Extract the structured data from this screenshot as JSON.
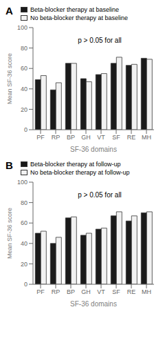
{
  "chart_data": [
    {
      "type": "bar",
      "title": "A",
      "xlabel": "SF-36 domains",
      "ylabel": "Mean SF-36 score",
      "annotation": "p > 0.05 for all",
      "categories": [
        "PF",
        "RP",
        "BP",
        "GH",
        "VT",
        "SF",
        "RE",
        "MH"
      ],
      "series": [
        {
          "name": "Beta-blocker therapy at baseline",
          "color": "#1a1a1a",
          "values": [
            49,
            39,
            65,
            50,
            54,
            65,
            63,
            70
          ]
        },
        {
          "name": "No beta-blocker therapy at baseline",
          "color": "#f2f2f2",
          "values": [
            53,
            46,
            65,
            47,
            55,
            71,
            64,
            69
          ]
        }
      ],
      "ylim": [
        0,
        100
      ],
      "yticks": [
        0,
        20,
        40,
        60,
        80,
        100
      ],
      "grid": false,
      "legend": "top"
    },
    {
      "type": "bar",
      "title": "B",
      "xlabel": "SF-36 domains",
      "ylabel": "Mean SF-36 score",
      "annotation": "p > 0.05 for all",
      "categories": [
        "PF",
        "RP",
        "BP",
        "GH",
        "VT",
        "SF",
        "RE",
        "MH"
      ],
      "series": [
        {
          "name": "Beta-blocker therapy at follow-up",
          "color": "#1a1a1a",
          "values": [
            50,
            40,
            65,
            48,
            54,
            67,
            62,
            70
          ]
        },
        {
          "name": "No beta-blocker therapy at follow-up",
          "color": "#f2f2f2",
          "values": [
            52,
            46,
            66,
            50,
            55,
            71,
            67,
            71
          ]
        }
      ],
      "ylim": [
        0,
        100
      ],
      "yticks": [
        0,
        20,
        40,
        60,
        80,
        100
      ],
      "grid": false,
      "legend": "top"
    }
  ]
}
